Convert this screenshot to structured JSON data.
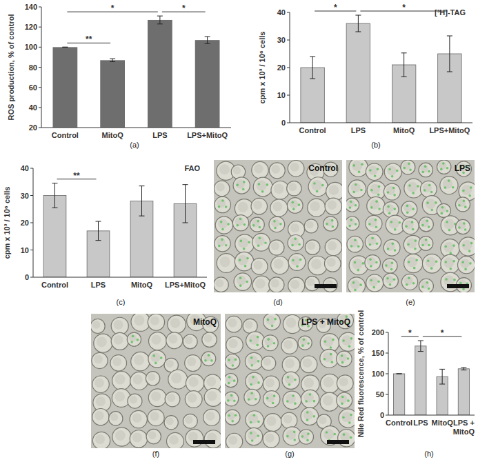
{
  "chart_data": [
    {
      "type": "bar",
      "caption": "(a)",
      "y_label": "ROS production, % of control",
      "categories": [
        "Control",
        "MitoQ",
        "LPS",
        "LPS+MitoQ"
      ],
      "values": [
        100,
        87,
        127,
        107
      ],
      "errors": [
        0,
        1.5,
        4,
        3.5
      ],
      "color": "#6e6e6e",
      "ylim": [
        20,
        140
      ],
      "yticks": [
        20,
        40,
        60,
        80,
        100,
        120,
        140
      ],
      "annotations": [
        {
          "from": "Control",
          "to": "MitoQ",
          "label": "**"
        },
        {
          "from": "Control",
          "to": "LPS",
          "label": "*"
        },
        {
          "from": "LPS",
          "to": "LPS+MitoQ",
          "label": "*"
        }
      ]
    },
    {
      "type": "bar",
      "caption": "(b)",
      "title": "[³H]-TAG",
      "y_label": "cpm x 10³ / 10⁶ cells",
      "categories": [
        "Control",
        "LPS",
        "MitoQ",
        "LPS+MitoQ"
      ],
      "values": [
        20,
        36,
        21,
        25
      ],
      "errors": [
        4,
        3,
        4.3,
        6.5
      ],
      "color": "#c8c8c8",
      "ylim": [
        0,
        40
      ],
      "yticks": [
        0,
        10,
        20,
        30,
        40
      ],
      "annotations": [
        {
          "from": "Control",
          "to": "LPS",
          "label": "*"
        },
        {
          "from": "LPS",
          "to": "LPS+MitoQ",
          "label": "*"
        }
      ]
    },
    {
      "type": "bar",
      "caption": "(c)",
      "title": "FAO",
      "y_label": "cpm x 10³ / 10⁶ cells",
      "categories": [
        "Control",
        "LPS",
        "MitoQ",
        "LPS+MitoQ"
      ],
      "values": [
        30,
        17,
        28,
        27
      ],
      "errors": [
        4.5,
        3.5,
        5.5,
        7
      ],
      "color": "#c8c8c8",
      "ylim": [
        0,
        40
      ],
      "yticks": [
        0,
        10,
        20,
        30,
        40
      ],
      "annotations": [
        {
          "from": "Control",
          "to": "LPS",
          "label": "**"
        }
      ]
    },
    {
      "type": "bar",
      "caption": "(h)",
      "y_label": "Nile Red fluorescence, % of control",
      "categories": [
        "Control",
        "LPS",
        "MitoQ",
        "LPS + MitoQ"
      ],
      "values": [
        100,
        167,
        93,
        112
      ],
      "errors": [
        0,
        13,
        18,
        3
      ],
      "color": "#c8c8c8",
      "ylim": [
        0,
        200
      ],
      "yticks": [
        0,
        50,
        100,
        150,
        200
      ],
      "annotations": [
        {
          "from": "Control",
          "to": "LPS",
          "label": "*"
        },
        {
          "from": "LPS",
          "to": "LPS + MitoQ",
          "label": "*"
        }
      ]
    }
  ],
  "images": [
    {
      "caption": "(d)",
      "label": "Control"
    },
    {
      "caption": "(e)",
      "label": "LPS"
    },
    {
      "caption": "(f)",
      "label": "MitoQ"
    },
    {
      "caption": "(g)",
      "label": "LPS + MitoQ"
    }
  ]
}
